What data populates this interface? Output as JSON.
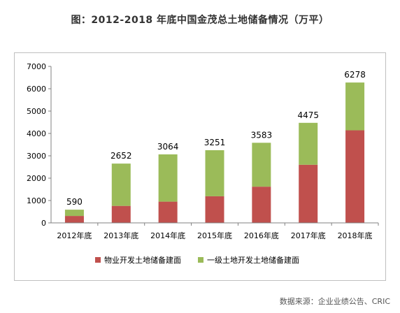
{
  "title": "图：2012-2018 年底中国金茂总土地储备情况（万平）",
  "source": "数据来源：企业业绩公告、CRIC",
  "colors": {
    "series_property": "#c0504d",
    "series_primary": "#9bbb59",
    "axis": "#808080",
    "text": "#000000"
  },
  "chart_data": {
    "type": "bar",
    "stacked": true,
    "categories": [
      "2012年底",
      "2013年底",
      "2014年底",
      "2015年底",
      "2016年底",
      "2017年底",
      "2018年底"
    ],
    "series": [
      {
        "name": "物业开发土地储备建面",
        "values": [
          310,
          760,
          950,
          1190,
          1620,
          2600,
          4140
        ]
      },
      {
        "name": "一级土地开发土地储备建面",
        "values": [
          280,
          1892,
          2114,
          2061,
          1963,
          1875,
          2138
        ]
      }
    ],
    "totals": [
      590,
      2652,
      3064,
      3251,
      3583,
      4475,
      6278
    ],
    "ylim": [
      0,
      7000
    ],
    "yticks": [
      0,
      1000,
      2000,
      3000,
      4000,
      5000,
      6000,
      7000
    ],
    "grid": false,
    "legend_position": "bottom"
  }
}
